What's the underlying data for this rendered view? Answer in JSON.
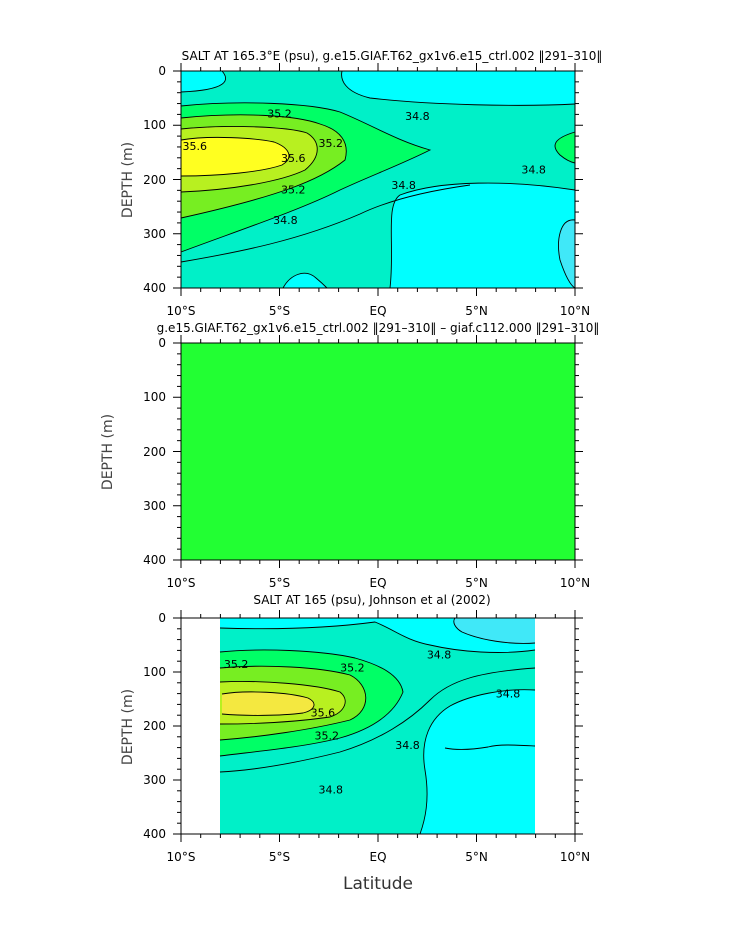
{
  "figure": {
    "xlabel": "Latitude"
  },
  "chart_data": [
    {
      "type": "heatmap",
      "title": "SALT AT 165.3°E (psu), g.e15.GIAF.T62_gx1v6.e15_ctrl.002 ‖291–310‖",
      "ylabel": "DEPTH (m)",
      "xlabel": "",
      "x_ticks": [
        "10°S",
        "5°S",
        "EQ",
        "5°N",
        "10°N"
      ],
      "x_tick_values": [
        -10,
        -5,
        0,
        5,
        10
      ],
      "y_ticks": [
        "0",
        "100",
        "200",
        "300",
        "400"
      ],
      "y_tick_values": [
        0,
        100,
        200,
        300,
        400
      ],
      "xlim": [
        -10,
        10
      ],
      "ylim": [
        400,
        0
      ],
      "units": "psu",
      "contour_labels": [
        {
          "text": "35.2",
          "lat": -5.0,
          "depth": 78
        },
        {
          "text": "34.8",
          "lat": 2.0,
          "depth": 83
        },
        {
          "text": "35.6",
          "lat": -9.3,
          "depth": 138
        },
        {
          "text": "35.6",
          "lat": -4.3,
          "depth": 160
        },
        {
          "text": "35.2",
          "lat": -2.4,
          "depth": 133
        },
        {
          "text": "34.8",
          "lat": 7.9,
          "depth": 182
        },
        {
          "text": "35.2",
          "lat": -4.3,
          "depth": 218
        },
        {
          "text": "34.8",
          "lat": 1.3,
          "depth": 210
        },
        {
          "text": "34.8",
          "lat": -4.7,
          "depth": 275
        }
      ]
    },
    {
      "type": "heatmap",
      "title": "g.e15.GIAF.T62_gx1v6.e15_ctrl.002 ‖291–310‖ – giaf.c112.000 ‖291–310‖",
      "ylabel": "DEPTH (m)",
      "xlabel": "",
      "x_ticks": [
        "10°S",
        "5°S",
        "EQ",
        "5°N",
        "10°N"
      ],
      "x_tick_values": [
        -10,
        -5,
        0,
        5,
        10
      ],
      "y_ticks": [
        "0",
        "100",
        "200",
        "300",
        "400"
      ],
      "y_tick_values": [
        0,
        100,
        200,
        300,
        400
      ],
      "xlim": [
        -10,
        10
      ],
      "ylim": [
        400,
        0
      ],
      "note_values": "uniform difference field",
      "contour_labels": []
    },
    {
      "type": "heatmap",
      "title": "SALT AT 165 (psu), Johnson et al (2002)",
      "ylabel": "DEPTH (m)",
      "xlabel": "Latitude",
      "x_ticks": [
        "10°S",
        "5°S",
        "EQ",
        "5°N",
        "10°N"
      ],
      "x_tick_values": [
        -10,
        -5,
        0,
        5,
        10
      ],
      "y_ticks": [
        "0",
        "100",
        "200",
        "300",
        "400"
      ],
      "y_tick_values": [
        0,
        100,
        200,
        300,
        400
      ],
      "xlim": [
        -10,
        10
      ],
      "ylim": [
        400,
        0
      ],
      "data_lat_range": [
        -8,
        8
      ],
      "units": "psu",
      "contour_labels": [
        {
          "text": "35.2",
          "lat": -7.2,
          "depth": 85
        },
        {
          "text": "35.2",
          "lat": -1.3,
          "depth": 92
        },
        {
          "text": "34.8",
          "lat": 3.1,
          "depth": 68
        },
        {
          "text": "34.8",
          "lat": 6.6,
          "depth": 140
        },
        {
          "text": "35.6",
          "lat": -2.8,
          "depth": 175
        },
        {
          "text": "35.2",
          "lat": -2.6,
          "depth": 218
        },
        {
          "text": "34.8",
          "lat": 1.5,
          "depth": 235
        },
        {
          "text": "34.8",
          "lat": -2.4,
          "depth": 318
        }
      ]
    }
  ],
  "colors": {
    "cyan": "#00ffff",
    "light_cyan": "#40e8f8",
    "aqua_green": "#00f0c8",
    "bright_green": "#00ff66",
    "green": "#22ff33",
    "mid_green": "#77ee22",
    "yellow_green": "#b8f020",
    "yellow": "#ffff20",
    "pale_yellow": "#f4e840"
  }
}
